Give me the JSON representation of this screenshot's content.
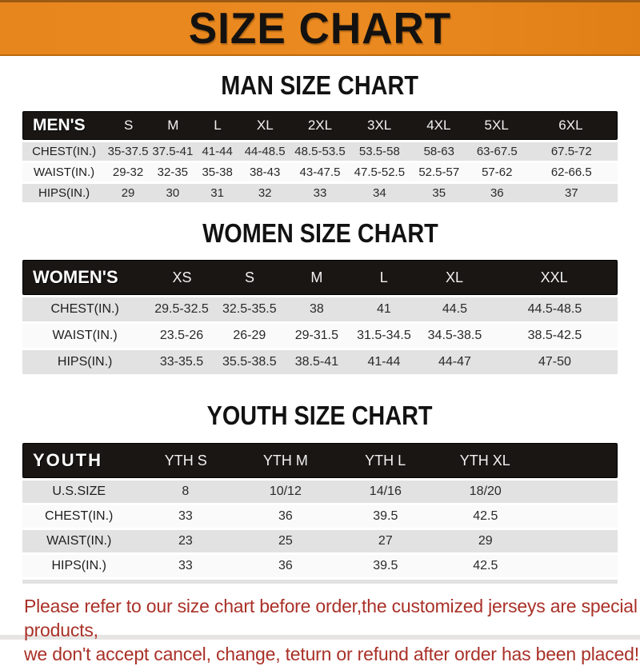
{
  "banner": {
    "title": "SIZE CHART",
    "bg_color": "#E8861E",
    "text_color": "#141210"
  },
  "sections": [
    {
      "title": "MAN SIZE CHART",
      "header_label": "MEN'S",
      "columns": [
        "S",
        "M",
        "L",
        "XL",
        "2XL",
        "3XL",
        "4XL",
        "5XL",
        "6XL"
      ],
      "rows": [
        {
          "label": "CHEST(IN.)",
          "values": [
            "35-37.5",
            "37.5-41",
            "41-44",
            "44-48.5",
            "48.5-53.5",
            "53.5-58",
            "58-63",
            "63-67.5",
            "67.5-72"
          ]
        },
        {
          "label": "WAIST(IN.)",
          "values": [
            "29-32",
            "32-35",
            "35-38",
            "38-43",
            "43-47.5",
            "47.5-52.5",
            "52.5-57",
            "57-62",
            "62-66.5"
          ]
        },
        {
          "label": "HIPS(IN.)",
          "values": [
            "29",
            "30",
            "31",
            "32",
            "33",
            "34",
            "35",
            "36",
            "37"
          ]
        }
      ]
    },
    {
      "title": "WOMEN SIZE CHART",
      "header_label": "WOMEN'S",
      "columns": [
        "XS",
        "S",
        "M",
        "L",
        "XL",
        "XXL"
      ],
      "rows": [
        {
          "label": "CHEST(IN.)",
          "values": [
            "29.5-32.5",
            "32.5-35.5",
            "38",
            "41",
            "44.5",
            "44.5-48.5"
          ]
        },
        {
          "label": "WAIST(IN.)",
          "values": [
            "23.5-26",
            "26-29",
            "29-31.5",
            "31.5-34.5",
            "34.5-38.5",
            "38.5-42.5"
          ]
        },
        {
          "label": "HIPS(IN.)",
          "values": [
            "33-35.5",
            "35.5-38.5",
            "38.5-41",
            "41-44",
            "44-47",
            "47-50"
          ]
        }
      ]
    },
    {
      "title": "YOUTH SIZE CHART",
      "header_label": "YOUTH",
      "columns": [
        "YTH S",
        "YTH M",
        "YTH L",
        "YTH XL"
      ],
      "rows": [
        {
          "label": "U.S.SIZE",
          "values": [
            "8",
            "10/12",
            "14/16",
            "18/20"
          ]
        },
        {
          "label": "CHEST(IN.)",
          "values": [
            "33",
            "36",
            "39.5",
            "42.5"
          ]
        },
        {
          "label": "WAIST(IN.)",
          "values": [
            "23",
            "25",
            "27",
            "29"
          ]
        },
        {
          "label": "HIPS(IN.)",
          "values": [
            "33",
            "36",
            "39.5",
            "42.5"
          ]
        }
      ]
    }
  ],
  "footer": {
    "line1": "Please refer to our size chart before order,the customized jerseys are special products,",
    "line2": "we don't accept cancel, change, teturn or refund after order has been placed!",
    "text_color": "#A93128"
  }
}
